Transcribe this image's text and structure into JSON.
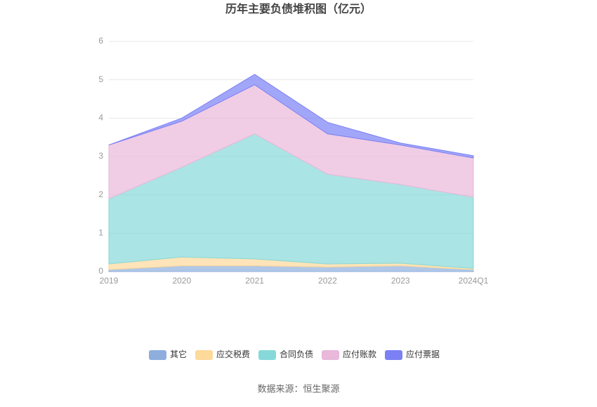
{
  "chart_data": {
    "type": "stacked-area",
    "title": "历年主要负债堆积图（亿元）",
    "categories": [
      "2019",
      "2020",
      "2021",
      "2022",
      "2023",
      "2024Q1"
    ],
    "series": [
      {
        "name": "其它",
        "color": "#8eafdd",
        "values": [
          0.05,
          0.15,
          0.15,
          0.12,
          0.15,
          0.05
        ]
      },
      {
        "name": "应交税费",
        "color": "#fdd99a",
        "values": [
          0.15,
          0.23,
          0.18,
          0.08,
          0.07,
          0.03
        ]
      },
      {
        "name": "合同负债",
        "color": "#87d9d9",
        "values": [
          1.7,
          2.34,
          3.26,
          2.34,
          2.05,
          1.86
        ]
      },
      {
        "name": "应付账款",
        "color": "#e9b8da",
        "values": [
          1.4,
          1.2,
          1.28,
          1.05,
          1.03,
          1.02
        ]
      },
      {
        "name": "应付票据",
        "color": "#7b80f5",
        "values": [
          0,
          0.08,
          0.27,
          0.3,
          0.05,
          0.06
        ]
      }
    ],
    "ylim": [
      0,
      6
    ],
    "yticks": [
      0,
      1,
      2,
      3,
      4,
      5,
      6
    ],
    "grid": true,
    "source": "数据来源：恒生聚源"
  }
}
